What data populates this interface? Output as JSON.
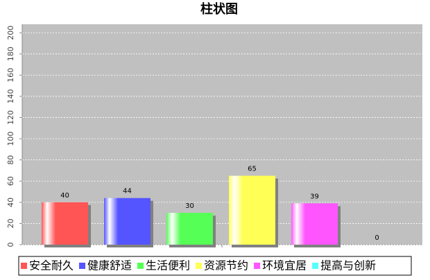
{
  "chart_data": {
    "type": "bar",
    "title": "柱状图",
    "categories": [
      null
    ],
    "series": [
      {
        "name": "安全耐久",
        "color": "#ff5555",
        "values": [
          40
        ]
      },
      {
        "name": "健康舒适",
        "color": "#5555ff",
        "values": [
          44
        ]
      },
      {
        "name": "生活便利",
        "color": "#55ff55",
        "values": [
          30
        ]
      },
      {
        "name": "资源节约",
        "color": "#ffff55",
        "values": [
          65
        ]
      },
      {
        "name": "环境宜居",
        "color": "#ff55ff",
        "values": [
          39
        ]
      },
      {
        "name": "提高与创新",
        "color": "#55ffff",
        "values": [
          0
        ]
      }
    ],
    "ylim": [
      0,
      208
    ],
    "yticks": [
      0,
      20,
      40,
      60,
      80,
      100,
      120,
      140,
      160,
      180,
      200
    ],
    "grid": true
  }
}
